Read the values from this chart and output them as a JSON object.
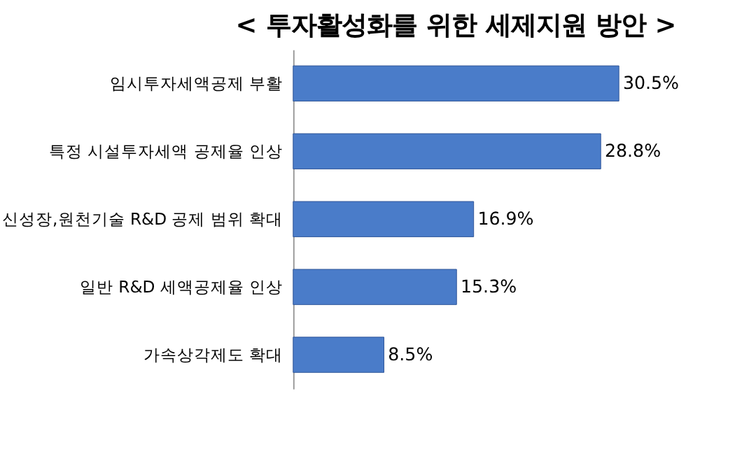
{
  "chart_data": {
    "type": "bar",
    "orientation": "horizontal",
    "title": "< 투자활성화를 위한 세제지원 방안 >",
    "categories": [
      "임시투자세액공제 부활",
      "특정 시설투자세액 공제율 인상",
      "신성장,원천기술 R&D 공제 범위 확대",
      "일반 R&D 세액공제율 인상",
      "가속상각제도 확대"
    ],
    "values": [
      30.5,
      28.8,
      16.9,
      15.3,
      8.5
    ],
    "value_labels": [
      "30.5%",
      "28.8%",
      "16.9%",
      "15.3%",
      "8.5%"
    ],
    "color": "#4a7cc9"
  }
}
